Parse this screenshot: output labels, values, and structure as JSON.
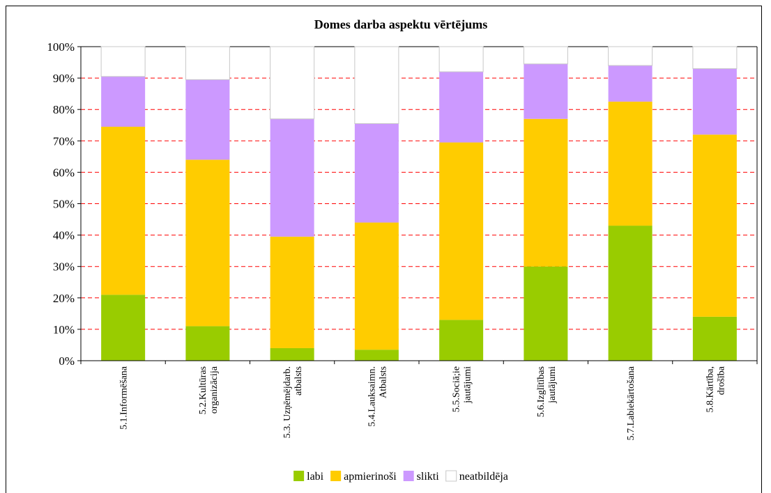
{
  "chart_data": {
    "type": "bar",
    "stacked": true,
    "percent": true,
    "title": "Domes darba aspektu vērtējums",
    "ylim": [
      0,
      100
    ],
    "yticks": [
      "0%",
      "10%",
      "20%",
      "30%",
      "40%",
      "50%",
      "60%",
      "70%",
      "80%",
      "90%",
      "100%"
    ],
    "categories": [
      [
        "5.1.Informēšana"
      ],
      [
        "5.2.Kultūras",
        "organizācija"
      ],
      [
        "5.3. Uzņēmējdarb.",
        "atbalsts"
      ],
      [
        "5.4.Lauksaimn.",
        "Atbalsts"
      ],
      [
        "5.5.Sociā;ie",
        "jautājumi"
      ],
      [
        "5.6.Izglītības",
        "jautājumi"
      ],
      [
        "5.7.Labiekārtošana"
      ],
      [
        "5.8.Kārtība,",
        "drošība"
      ]
    ],
    "series": [
      {
        "name": "labi",
        "color": "#99cc00",
        "values": [
          21,
          11,
          4,
          3.5,
          13,
          30,
          43,
          14
        ]
      },
      {
        "name": "apmierinoši",
        "color": "#ffcc00",
        "values": [
          53.5,
          53,
          35.5,
          40.5,
          56.5,
          47,
          39.5,
          58
        ]
      },
      {
        "name": "slikti",
        "color": "#cc99ff",
        "values": [
          16,
          25.5,
          37.5,
          31.5,
          22.5,
          17.5,
          11.5,
          21
        ]
      },
      {
        "name": "neatbildēja",
        "color": "#ffffff",
        "values": [
          9.5,
          10.5,
          23,
          24.5,
          8,
          5.5,
          6,
          7
        ]
      }
    ],
    "grid": {
      "y": true,
      "style": "dashed",
      "color": "#ff0000"
    },
    "legend": "bottom"
  }
}
